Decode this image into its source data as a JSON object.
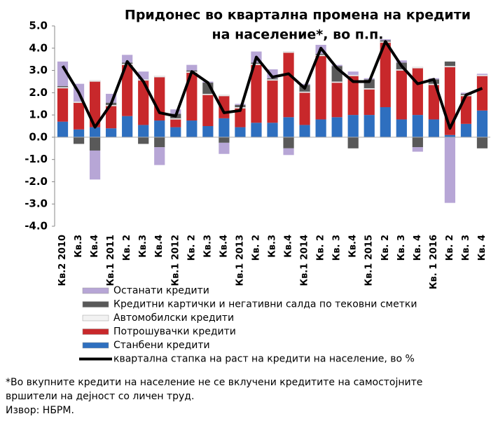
{
  "chart_data": {
    "type": "bar",
    "title": [
      "Придонес во квартална промена на кредити",
      "на население*, во п.п."
    ],
    "categories": [
      "Кв.2 2010",
      "Кв.3",
      "Кв.4",
      "Кв.1 2011",
      "Кв. 2",
      "Кв.3",
      "Кв.4",
      "Кв.1 2012",
      "Кв. 2",
      "Кв.3",
      "Кв.4",
      "Кв.1 2013",
      "Кв. 2",
      "Кв.3",
      "Кв.4",
      "Кв.1 2014",
      "Кв. 2",
      "Кв. 3",
      "Кв.4",
      "Кв.1 2015",
      "Кв. 2",
      "Кв. 3",
      "Кв. 4",
      "Кв. 1 2016",
      "Кв. 2",
      "Кв. 3",
      "Кв. 4"
    ],
    "series": [
      {
        "name": "Станбени кредити",
        "color": "#2e6fbf",
        "values": [
          0.7,
          0.35,
          0.45,
          0.4,
          0.95,
          0.55,
          0.75,
          0.45,
          0.75,
          0.5,
          0.85,
          0.45,
          0.65,
          0.65,
          0.9,
          0.55,
          0.8,
          0.9,
          1.0,
          1.0,
          1.35,
          0.8,
          1.0,
          0.8,
          0.1,
          0.6,
          1.2
        ]
      },
      {
        "name": "Потрошувачки кредити",
        "color": "#c8282b",
        "values": [
          1.5,
          1.2,
          2.05,
          1.0,
          2.3,
          2.0,
          1.95,
          0.35,
          2.15,
          1.4,
          1.0,
          0.85,
          2.6,
          1.9,
          2.9,
          1.45,
          2.85,
          1.55,
          1.75,
          1.15,
          2.9,
          2.2,
          2.1,
          1.55,
          3.05,
          1.25,
          1.55
        ]
      },
      {
        "name": "Автомобилски кредити",
        "color": "#f2f2f2",
        "values": [
          0.05,
          0.05,
          0.05,
          0.05,
          0.05,
          0.05,
          0.05,
          0.05,
          0.05,
          0.05,
          0.05,
          0.05,
          0.05,
          0.05,
          0.05,
          0.05,
          0.05,
          0.05,
          0.05,
          0.05,
          0.05,
          0.05,
          0.05,
          0.05,
          0.05,
          0.05,
          0.05
        ]
      },
      {
        "name": "Кредитни картички и негативни салда по тековни сметки",
        "color": "#595959",
        "values": [
          0.05,
          -0.3,
          -0.6,
          0.1,
          0.05,
          -0.3,
          -0.45,
          0.2,
          0.05,
          0.5,
          -0.25,
          0.1,
          0.05,
          0.05,
          -0.5,
          0.3,
          0.05,
          0.7,
          -0.5,
          0.4,
          0.05,
          0.3,
          -0.45,
          0.2,
          0.2,
          0.05,
          -0.5
        ]
      },
      {
        "name": "Останати кредити",
        "color": "#b7a6d6",
        "values": [
          1.1,
          0.8,
          -1.3,
          0.4,
          0.35,
          0.35,
          -0.8,
          0.2,
          0.25,
          0.05,
          -0.5,
          0.05,
          0.5,
          0.4,
          -0.3,
          0.05,
          0.4,
          0.05,
          0.15,
          0.05,
          0.05,
          0.1,
          -0.2,
          0.05,
          -2.95,
          0.05,
          0.05
        ]
      },
      {
        "name": "квартална стапка на раст на кредити на население, во %",
        "color": "#000000",
        "type": "line",
        "values": [
          3.2,
          2.0,
          0.45,
          1.5,
          3.4,
          2.5,
          1.1,
          0.95,
          2.95,
          2.45,
          1.1,
          1.2,
          3.6,
          2.7,
          2.85,
          2.2,
          4.0,
          3.1,
          2.5,
          2.5,
          4.3,
          3.2,
          2.4,
          2.6,
          0.4,
          1.9,
          2.2
        ]
      }
    ],
    "ylim": [
      -4,
      5
    ],
    "yticks": [
      {
        "value": -4,
        "label": "-4.0"
      },
      {
        "value": -3,
        "label": "-3.0"
      },
      {
        "value": -2,
        "label": "-2.0"
      },
      {
        "value": -1,
        "label": "-1.0"
      },
      {
        "value": 0,
        "label": "0.0"
      },
      {
        "value": 1,
        "label": "1.0"
      },
      {
        "value": 2,
        "label": "2.0"
      },
      {
        "value": 3,
        "label": "3.0"
      },
      {
        "value": 4,
        "label": "4.0"
      },
      {
        "value": 5,
        "label": "5.0"
      }
    ],
    "notes": [
      "*Во вкупните кредити на население не се вклучени кредитите на самостојните",
      "вршители на дејност со личен труд.",
      "Извор: НБРМ."
    ]
  }
}
